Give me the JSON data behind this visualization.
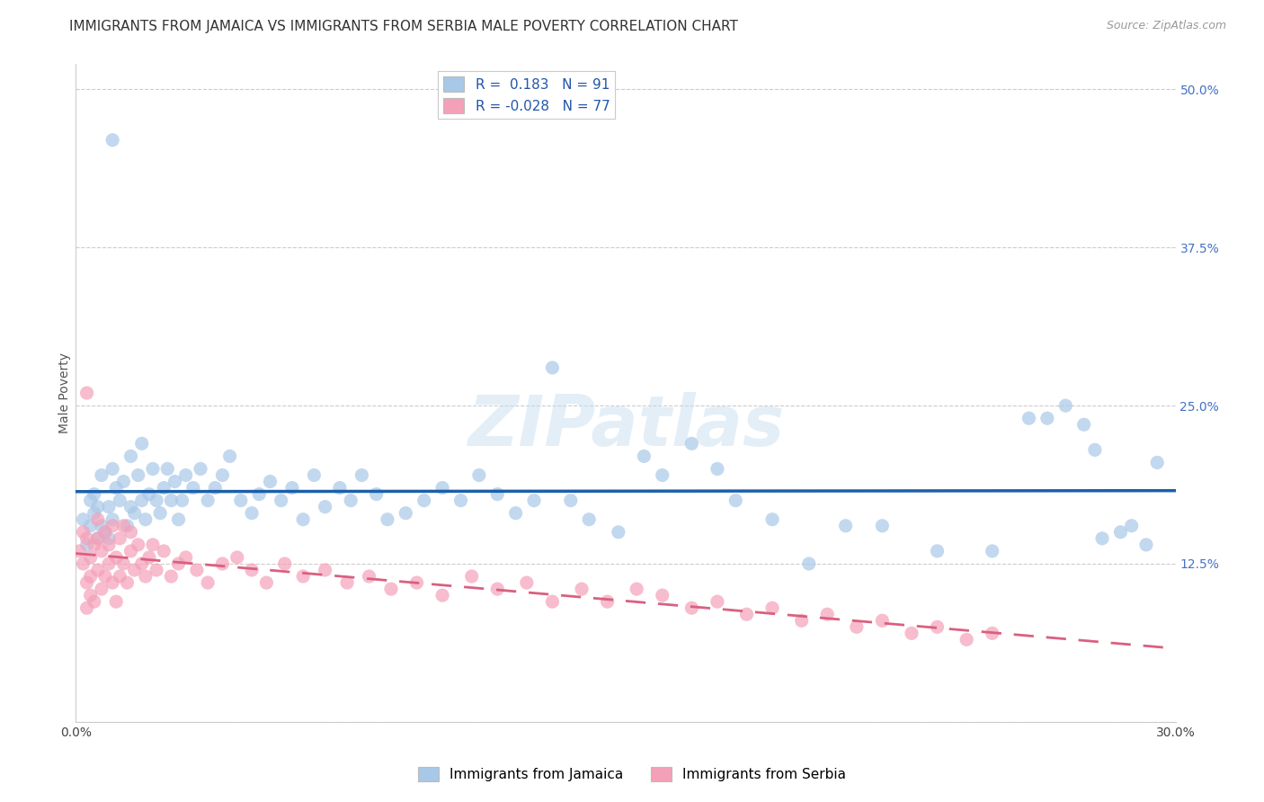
{
  "title": "IMMIGRANTS FROM JAMAICA VS IMMIGRANTS FROM SERBIA MALE POVERTY CORRELATION CHART",
  "source": "Source: ZipAtlas.com",
  "ylabel": "Male Poverty",
  "xlim": [
    0.0,
    0.3
  ],
  "ylim": [
    0.0,
    0.52
  ],
  "yticks": [
    0.0,
    0.125,
    0.25,
    0.375,
    0.5
  ],
  "ytick_labels": [
    "",
    "12.5%",
    "25.0%",
    "37.5%",
    "50.0%"
  ],
  "xticks": [
    0.0,
    0.05,
    0.1,
    0.15,
    0.2,
    0.25,
    0.3
  ],
  "xtick_labels": [
    "0.0%",
    "",
    "",
    "",
    "",
    "",
    "30.0%"
  ],
  "grid_color": "#cccccc",
  "background_color": "#ffffff",
  "jamaica_color": "#a8c8e8",
  "serbia_color": "#f4a0b8",
  "jamaica_line_color": "#1b5faa",
  "serbia_line_color": "#d96080",
  "r_jamaica": 0.183,
  "n_jamaica": 91,
  "r_serbia": -0.028,
  "n_serbia": 77,
  "title_fontsize": 11,
  "axis_label_fontsize": 10,
  "tick_fontsize": 10,
  "legend_fontsize": 11,
  "jamaica_scatter_x": [
    0.002,
    0.003,
    0.004,
    0.004,
    0.005,
    0.005,
    0.006,
    0.006,
    0.007,
    0.007,
    0.008,
    0.009,
    0.009,
    0.01,
    0.01,
    0.011,
    0.012,
    0.013,
    0.014,
    0.015,
    0.015,
    0.016,
    0.017,
    0.018,
    0.018,
    0.019,
    0.02,
    0.021,
    0.022,
    0.023,
    0.024,
    0.025,
    0.026,
    0.027,
    0.028,
    0.029,
    0.03,
    0.032,
    0.034,
    0.036,
    0.038,
    0.04,
    0.042,
    0.045,
    0.048,
    0.05,
    0.053,
    0.056,
    0.059,
    0.062,
    0.065,
    0.068,
    0.072,
    0.075,
    0.078,
    0.082,
    0.085,
    0.09,
    0.095,
    0.1,
    0.105,
    0.11,
    0.115,
    0.12,
    0.125,
    0.13,
    0.135,
    0.14,
    0.148,
    0.155,
    0.16,
    0.168,
    0.175,
    0.18,
    0.19,
    0.2,
    0.21,
    0.22,
    0.235,
    0.25,
    0.26,
    0.265,
    0.27,
    0.275,
    0.278,
    0.28,
    0.285,
    0.288,
    0.292,
    0.295,
    0.01
  ],
  "jamaica_scatter_y": [
    0.16,
    0.14,
    0.155,
    0.175,
    0.165,
    0.18,
    0.145,
    0.17,
    0.155,
    0.195,
    0.15,
    0.145,
    0.17,
    0.16,
    0.2,
    0.185,
    0.175,
    0.19,
    0.155,
    0.17,
    0.21,
    0.165,
    0.195,
    0.175,
    0.22,
    0.16,
    0.18,
    0.2,
    0.175,
    0.165,
    0.185,
    0.2,
    0.175,
    0.19,
    0.16,
    0.175,
    0.195,
    0.185,
    0.2,
    0.175,
    0.185,
    0.195,
    0.21,
    0.175,
    0.165,
    0.18,
    0.19,
    0.175,
    0.185,
    0.16,
    0.195,
    0.17,
    0.185,
    0.175,
    0.195,
    0.18,
    0.16,
    0.165,
    0.175,
    0.185,
    0.175,
    0.195,
    0.18,
    0.165,
    0.175,
    0.28,
    0.175,
    0.16,
    0.15,
    0.21,
    0.195,
    0.22,
    0.2,
    0.175,
    0.16,
    0.125,
    0.155,
    0.155,
    0.135,
    0.135,
    0.24,
    0.24,
    0.25,
    0.235,
    0.215,
    0.145,
    0.15,
    0.155,
    0.14,
    0.205,
    0.46
  ],
  "serbia_scatter_x": [
    0.001,
    0.002,
    0.002,
    0.003,
    0.003,
    0.003,
    0.004,
    0.004,
    0.004,
    0.005,
    0.005,
    0.006,
    0.006,
    0.006,
    0.007,
    0.007,
    0.008,
    0.008,
    0.009,
    0.009,
    0.01,
    0.01,
    0.011,
    0.011,
    0.012,
    0.012,
    0.013,
    0.013,
    0.014,
    0.015,
    0.015,
    0.016,
    0.017,
    0.018,
    0.019,
    0.02,
    0.021,
    0.022,
    0.024,
    0.026,
    0.028,
    0.03,
    0.033,
    0.036,
    0.04,
    0.044,
    0.048,
    0.052,
    0.057,
    0.062,
    0.068,
    0.074,
    0.08,
    0.086,
    0.093,
    0.1,
    0.108,
    0.115,
    0.123,
    0.13,
    0.138,
    0.145,
    0.153,
    0.16,
    0.168,
    0.175,
    0.183,
    0.19,
    0.198,
    0.205,
    0.213,
    0.22,
    0.228,
    0.235,
    0.243,
    0.25,
    0.003
  ],
  "serbia_scatter_y": [
    0.135,
    0.125,
    0.15,
    0.09,
    0.11,
    0.145,
    0.1,
    0.115,
    0.13,
    0.095,
    0.14,
    0.12,
    0.145,
    0.16,
    0.105,
    0.135,
    0.115,
    0.15,
    0.125,
    0.14,
    0.11,
    0.155,
    0.095,
    0.13,
    0.115,
    0.145,
    0.125,
    0.155,
    0.11,
    0.135,
    0.15,
    0.12,
    0.14,
    0.125,
    0.115,
    0.13,
    0.14,
    0.12,
    0.135,
    0.115,
    0.125,
    0.13,
    0.12,
    0.11,
    0.125,
    0.13,
    0.12,
    0.11,
    0.125,
    0.115,
    0.12,
    0.11,
    0.115,
    0.105,
    0.11,
    0.1,
    0.115,
    0.105,
    0.11,
    0.095,
    0.105,
    0.095,
    0.105,
    0.1,
    0.09,
    0.095,
    0.085,
    0.09,
    0.08,
    0.085,
    0.075,
    0.08,
    0.07,
    0.075,
    0.065,
    0.07,
    0.26
  ]
}
